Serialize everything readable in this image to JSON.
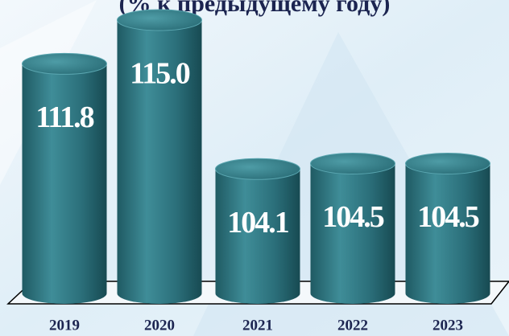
{
  "chart_data": {
    "type": "bar3d",
    "title": "(% к предыдущему году)",
    "categories": [
      "2019",
      "2020",
      "2021",
      "2022",
      "2023"
    ],
    "values": [
      111.8,
      115.0,
      104.1,
      104.5,
      104.5
    ],
    "value_labels": [
      "111.8",
      "115.0",
      "104.1",
      "104.5",
      "104.5"
    ],
    "color": "#2e7480",
    "ylim": [
      95,
      116
    ]
  }
}
